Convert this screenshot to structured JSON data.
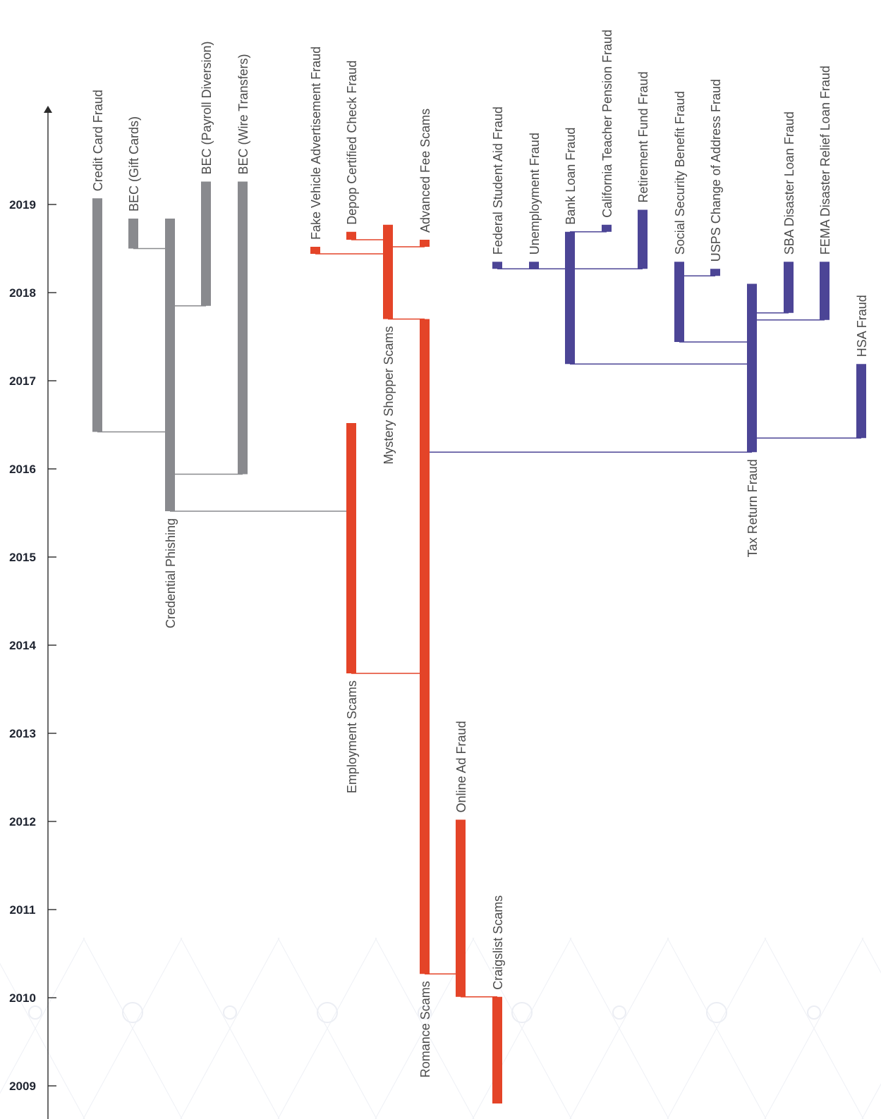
{
  "chart_data": {
    "type": "timeline",
    "title": "",
    "y_axis": {
      "ticks": [
        "2009",
        "2010",
        "2011",
        "2012",
        "2013",
        "2014",
        "2015",
        "2016",
        "2017",
        "2018",
        "2019"
      ],
      "range": [
        2008.8,
        2020.1
      ]
    },
    "colors": {
      "gray": "#898a8e",
      "red": "#e44428",
      "purple": "#4c4596",
      "axis": "#2b2b2b"
    },
    "bars": [
      {
        "id": "credit-card",
        "label": "Credit Card Fraud",
        "color": "gray",
        "start": 2016.42,
        "end": 2019.07
      },
      {
        "id": "bec-gift",
        "label": "BEC (Gift Cards)",
        "color": "gray",
        "start": 2018.5,
        "end": 2018.84
      },
      {
        "id": "cred-phish",
        "label": "Credential Phishing",
        "color": "gray",
        "start": 2015.52,
        "end": 2018.84
      },
      {
        "id": "bec-payroll",
        "label": "BEC (Payroll Diversion)",
        "color": "gray",
        "start": 2017.85,
        "end": 2019.26
      },
      {
        "id": "bec-wire",
        "label": "BEC (Wire Transfers)",
        "color": "gray",
        "start": 2015.94,
        "end": 2019.26
      },
      {
        "id": "fake-vehicle",
        "label": "Fake Vehicle Advertisement Fraud",
        "color": "red",
        "start": 2018.44,
        "end": 2018.52
      },
      {
        "id": "depop",
        "label": "Depop Certified Check Fraud",
        "color": "red",
        "start": 2018.6,
        "end": 2018.69
      },
      {
        "id": "mystery",
        "label": "Mystery Shopper Scams",
        "color": "red",
        "start": 2017.7,
        "end": 2018.77
      },
      {
        "id": "adv-fee",
        "label": "Advanced Fee Scams",
        "color": "red",
        "start": 2018.52,
        "end": 2018.6
      },
      {
        "id": "employment",
        "label": "Employment Scams",
        "color": "red",
        "start": 2013.68,
        "end": 2016.52
      },
      {
        "id": "romance",
        "label": "Romance Scams",
        "color": "red",
        "start": 2010.27,
        "end": 2017.7
      },
      {
        "id": "online-ad",
        "label": "Online Ad Fraud",
        "color": "red",
        "start": 2010.01,
        "end": 2012.02
      },
      {
        "id": "craigslist",
        "label": "Craigslist Scams",
        "color": "red",
        "start": 2008.8,
        "end": 2010.01
      },
      {
        "id": "fed-student",
        "label": "Federal Student Aid Fraud",
        "color": "purple",
        "start": 2018.27,
        "end": 2018.35
      },
      {
        "id": "unemployment",
        "label": "Unemployment Fraud",
        "color": "purple",
        "start": 2018.27,
        "end": 2018.35
      },
      {
        "id": "bank-loan",
        "label": "Bank Loan Fraud",
        "color": "purple",
        "start": 2017.19,
        "end": 2018.69
      },
      {
        "id": "calteach",
        "label": "California Teacher Pension Fraud",
        "color": "purple",
        "start": 2018.69,
        "end": 2018.77
      },
      {
        "id": "retirement",
        "label": "Retirement Fund Fraud",
        "color": "purple",
        "start": 2018.27,
        "end": 2018.94
      },
      {
        "id": "soc-sec",
        "label": "Social Security Benefit Fraud",
        "color": "purple",
        "start": 2017.44,
        "end": 2018.35
      },
      {
        "id": "usps",
        "label": "USPS Change of Address Fraud",
        "color": "purple",
        "start": 2018.19,
        "end": 2018.27
      },
      {
        "id": "tax-return",
        "label": "Tax Return Fraud",
        "color": "purple",
        "start": 2016.19,
        "end": 2018.1
      },
      {
        "id": "sba",
        "label": "SBA Disaster Loan Fraud",
        "color": "purple",
        "start": 2017.77,
        "end": 2018.35
      },
      {
        "id": "fema",
        "label": "FEMA Disaster Relief Loan Fraud",
        "color": "purple",
        "start": 2017.69,
        "end": 2018.35
      },
      {
        "id": "hsa",
        "label": "HSA Fraud",
        "color": "purple",
        "start": 2016.35,
        "end": 2017.19
      }
    ],
    "links": [
      {
        "from": "cred-phish",
        "to": "credit-card",
        "at": 2016.42,
        "color": "gray"
      },
      {
        "from": "cred-phish",
        "to": "bec-gift",
        "at": 2018.5,
        "color": "gray"
      },
      {
        "from": "cred-phish",
        "to": "bec-payroll",
        "at": 2017.85,
        "color": "gray"
      },
      {
        "from": "cred-phish",
        "to": "bec-wire",
        "at": 2015.94,
        "color": "gray"
      },
      {
        "from": "employment",
        "to": "cred-phish",
        "at": 2015.52,
        "color": "gray"
      },
      {
        "from": "romance",
        "to": "employment",
        "at": 2013.68,
        "color": "red"
      },
      {
        "from": "romance",
        "to": "mystery",
        "at": 2017.7,
        "color": "red"
      },
      {
        "from": "mystery",
        "to": "fake-vehicle",
        "at": 2018.44,
        "color": "red"
      },
      {
        "from": "mystery",
        "to": "depop",
        "at": 2018.6,
        "color": "red"
      },
      {
        "from": "mystery",
        "to": "adv-fee",
        "at": 2018.52,
        "color": "red"
      },
      {
        "from": "romance",
        "to": "online-ad",
        "at": 2010.27,
        "color": "red"
      },
      {
        "from": "online-ad",
        "to": "craigslist",
        "at": 2010.01,
        "color": "red"
      },
      {
        "from": "romance",
        "to": "tax-return",
        "at": 2016.19,
        "color": "purple"
      },
      {
        "from": "tax-return",
        "to": "bank-loan",
        "at": 2017.19,
        "color": "purple"
      },
      {
        "from": "bank-loan",
        "to": "fed-student",
        "at": 2018.27,
        "color": "purple"
      },
      {
        "from": "bank-loan",
        "to": "unemployment",
        "at": 2018.27,
        "color": "purple"
      },
      {
        "from": "bank-loan",
        "to": "retirement",
        "at": 2018.27,
        "color": "purple"
      },
      {
        "from": "bank-loan",
        "to": "calteach",
        "at": 2018.69,
        "color": "purple"
      },
      {
        "from": "tax-return",
        "to": "soc-sec",
        "at": 2017.44,
        "color": "purple"
      },
      {
        "from": "soc-sec",
        "to": "usps",
        "at": 2018.19,
        "color": "purple"
      },
      {
        "from": "tax-return",
        "to": "sba",
        "at": 2017.77,
        "color": "purple"
      },
      {
        "from": "tax-return",
        "to": "fema",
        "at": 2017.69,
        "color": "purple"
      },
      {
        "from": "tax-return",
        "to": "hsa",
        "at": 2016.35,
        "color": "purple"
      }
    ]
  }
}
